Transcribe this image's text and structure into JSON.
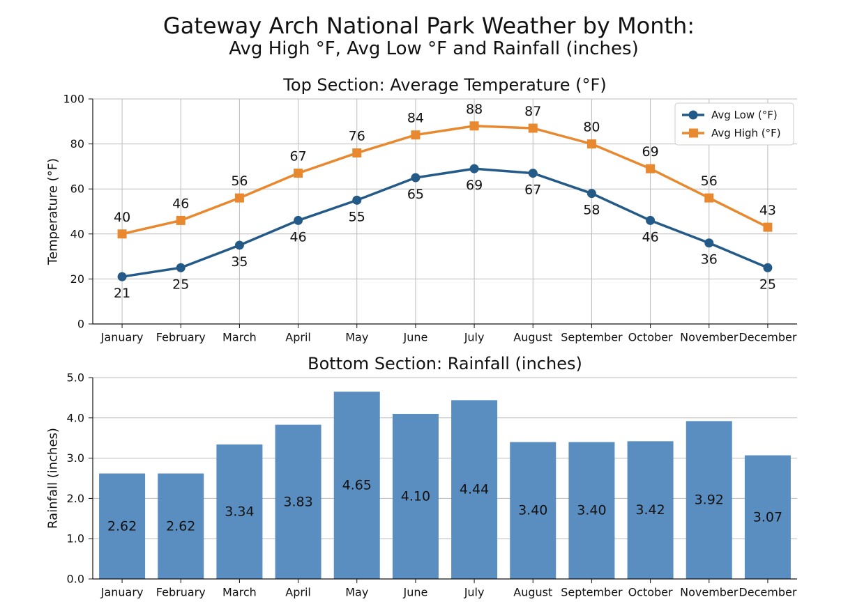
{
  "title": "Gateway Arch National Park Weather by Month:",
  "subtitle": "Avg High °F, Avg Low °F and Rainfall (inches)",
  "chart_data": [
    {
      "type": "line",
      "title": "Top Section: Average Temperature (°F)",
      "y_label": "Temperature (°F)",
      "categories": [
        "January",
        "February",
        "March",
        "April",
        "May",
        "June",
        "July",
        "August",
        "September",
        "October",
        "November",
        "December"
      ],
      "series": [
        {
          "name": "Avg Low (°F)",
          "color": "#245a87",
          "marker": "circle",
          "values": [
            21,
            25,
            35,
            46,
            55,
            65,
            69,
            67,
            58,
            46,
            36,
            25
          ]
        },
        {
          "name": "Avg High (°F)",
          "color": "#e8892f",
          "marker": "square",
          "values": [
            40,
            46,
            56,
            67,
            76,
            84,
            88,
            87,
            80,
            69,
            56,
            43
          ]
        }
      ],
      "ylim": [
        0,
        100
      ],
      "yticks": [
        0,
        20,
        40,
        60,
        80,
        100
      ],
      "grid": "both",
      "legend": "upper right"
    },
    {
      "type": "bar",
      "title": "Bottom Section: Rainfall (inches)",
      "y_label": "Rainfall (inches)",
      "categories": [
        "January",
        "February",
        "March",
        "April",
        "May",
        "June",
        "July",
        "August",
        "September",
        "October",
        "November",
        "December"
      ],
      "values": [
        2.62,
        2.62,
        3.34,
        3.83,
        4.65,
        4.1,
        4.44,
        3.4,
        3.4,
        3.42,
        3.92,
        3.07
      ],
      "value_labels": [
        "2.62",
        "2.62",
        "3.34",
        "3.83",
        "4.65",
        "4.10",
        "4.44",
        "3.40",
        "3.40",
        "3.42",
        "3.92",
        "3.07"
      ],
      "color": "#5b8ec0",
      "ylim": [
        0,
        5
      ],
      "yticks": [
        {
          "value": 0,
          "label": "0.0"
        },
        {
          "value": 1,
          "label": "1.0"
        },
        {
          "value": 2,
          "label": "2.0"
        },
        {
          "value": 3,
          "label": "3.0"
        },
        {
          "value": 4,
          "label": "4.0"
        },
        {
          "value": 5,
          "label": "5.0"
        }
      ],
      "grid": "y"
    }
  ]
}
